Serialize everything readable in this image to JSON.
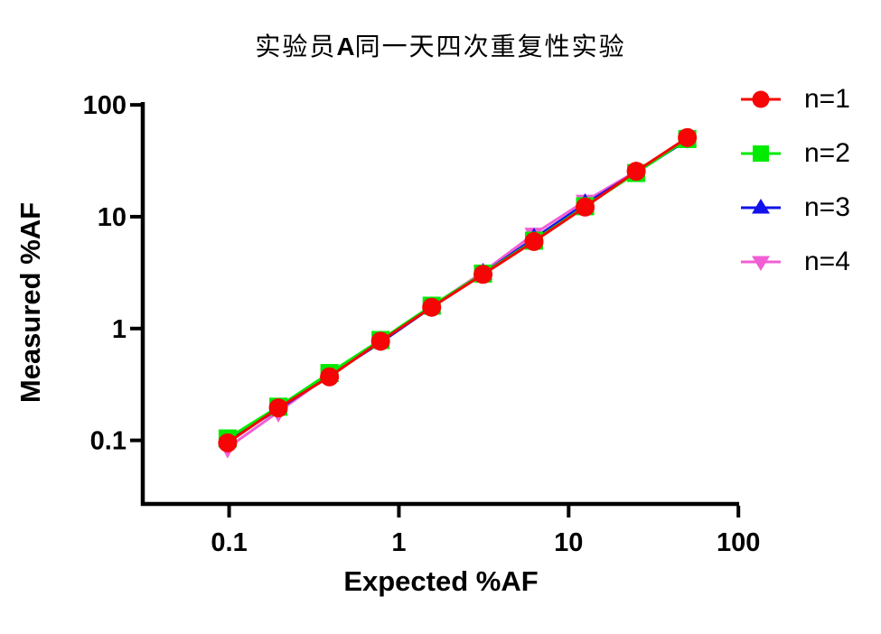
{
  "page": {
    "background": "#FFFFFF",
    "text_color": "#000000"
  },
  "title": {
    "prefix": "实验员",
    "bold": "A",
    "suffix": "同一天四次重复性实验",
    "full": "实验员A同一天四次重复性实验"
  },
  "chart_data": {
    "type": "scatter",
    "title": "实验员A同一天四次重复性实验",
    "xlabel": "Expected %AF",
    "ylabel": "Measured %AF",
    "x_scale": "log",
    "y_scale": "log",
    "xlim": [
      0.031,
      101
    ],
    "ylim": [
      0.027,
      106
    ],
    "x_ticks": [
      0.1,
      1,
      10,
      100
    ],
    "x_tick_labels": [
      "0.1",
      "1",
      "10",
      "100"
    ],
    "y_ticks": [
      0.1,
      1,
      10,
      100
    ],
    "y_tick_labels": [
      "0.1",
      "1",
      "10",
      "100"
    ],
    "grid": false,
    "legend_position": "right-top",
    "axis_color": "#000000",
    "x": [
      0.098,
      0.195,
      0.39,
      0.78,
      1.56,
      3.13,
      6.25,
      12.5,
      25,
      50
    ],
    "series": [
      {
        "name": "n=1",
        "marker": "circle",
        "color": "#F50505",
        "values": [
          0.095,
          0.195,
          0.37,
          0.77,
          1.55,
          3.05,
          6.0,
          12.2,
          25.5,
          51.0
        ]
      },
      {
        "name": "n=2",
        "marker": "square",
        "color": "#00EB00",
        "values": [
          0.104,
          0.2,
          0.4,
          0.79,
          1.6,
          3.1,
          6.1,
          12.4,
          24.6,
          49.5
        ]
      },
      {
        "name": "n=3",
        "marker": "triangle-up",
        "color": "#1212EB",
        "values": [
          0.1,
          0.19,
          0.38,
          0.75,
          1.55,
          3.1,
          6.4,
          13.0,
          25.0,
          48.5
        ]
      },
      {
        "name": "n=4",
        "marker": "triangle-down",
        "color": "#F15FD4",
        "values": [
          0.086,
          0.18,
          0.385,
          0.78,
          1.58,
          3.2,
          7.0,
          13.8,
          25.5,
          50.5
        ]
      }
    ]
  }
}
